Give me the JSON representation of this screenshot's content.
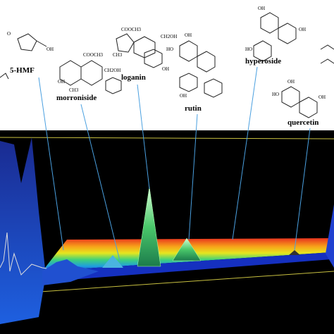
{
  "compounds": [
    {
      "name": "5-HMF",
      "groups": [
        "O",
        "OH"
      ]
    },
    {
      "name": "morroniside",
      "groups": [
        "COOCH3",
        "CH2OH",
        "CH3",
        "OH"
      ]
    },
    {
      "name": "loganin",
      "groups": [
        "COOCH3",
        "CH2OH",
        "CH3",
        "OH"
      ]
    },
    {
      "name": "rutin",
      "groups": [
        "HO",
        "OH",
        "OH"
      ]
    },
    {
      "name": "hyperoside",
      "groups": [
        "HO",
        "OH",
        "OH"
      ]
    },
    {
      "name": "quercetin",
      "groups": [
        "HO",
        "OH",
        "OH"
      ]
    }
  ]
}
